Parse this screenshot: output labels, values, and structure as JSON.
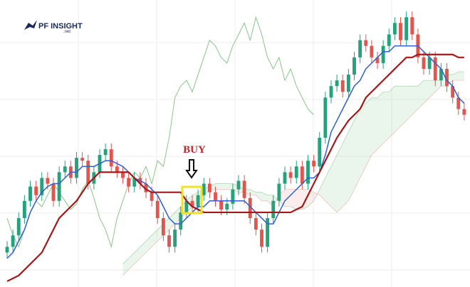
{
  "logo": {
    "name": "PF INSIGHT",
    "suffix": ".net"
  },
  "chart_data": {
    "type": "candlestick",
    "annotation": "BUY",
    "ylim": [
      0,
      100
    ],
    "up_color": "#26a17b",
    "down_color": "#e0564f",
    "open": [
      12,
      14,
      18,
      24,
      30,
      35,
      32,
      38,
      36,
      30,
      40,
      42,
      38,
      45,
      44,
      36,
      40,
      46,
      48,
      42,
      40,
      38,
      35,
      38,
      36,
      33,
      30,
      24,
      18,
      14,
      20,
      26,
      30,
      28,
      32,
      36,
      33,
      30,
      27,
      29,
      34,
      37,
      31,
      24,
      20,
      14,
      24,
      30,
      36,
      40,
      38,
      42,
      36,
      44,
      42,
      52,
      66,
      70,
      72,
      68,
      74,
      80,
      86,
      84,
      80,
      78,
      84,
      88,
      92,
      86,
      94,
      88,
      80,
      76,
      80,
      72,
      76,
      70,
      66,
      62
    ],
    "high": [
      16,
      20,
      26,
      32,
      37,
      37,
      40,
      40,
      38,
      42,
      44,
      44,
      47,
      47,
      46,
      42,
      48,
      50,
      50,
      44,
      42,
      40,
      40,
      40,
      38,
      35,
      32,
      26,
      20,
      22,
      28,
      32,
      32,
      34,
      38,
      38,
      35,
      32,
      31,
      36,
      39,
      39,
      33,
      26,
      22,
      26,
      32,
      38,
      42,
      42,
      44,
      44,
      46,
      46,
      54,
      68,
      72,
      74,
      74,
      76,
      82,
      88,
      88,
      86,
      82,
      86,
      90,
      94,
      94,
      96,
      96,
      90,
      82,
      82,
      82,
      78,
      78,
      72,
      68,
      64
    ],
    "low": [
      10,
      12,
      16,
      22,
      28,
      30,
      30,
      34,
      28,
      28,
      38,
      36,
      36,
      42,
      34,
      34,
      38,
      44,
      40,
      38,
      36,
      33,
      33,
      34,
      31,
      28,
      22,
      16,
      12,
      12,
      18,
      24,
      26,
      26,
      30,
      31,
      28,
      25,
      25,
      27,
      32,
      29,
      22,
      18,
      12,
      12,
      22,
      28,
      34,
      36,
      36,
      34,
      34,
      40,
      40,
      50,
      64,
      68,
      66,
      66,
      72,
      78,
      82,
      78,
      76,
      76,
      82,
      86,
      84,
      84,
      86,
      78,
      74,
      74,
      70,
      70,
      68,
      64,
      60,
      58
    ],
    "close": [
      14,
      18,
      24,
      30,
      35,
      32,
      38,
      36,
      30,
      40,
      42,
      38,
      45,
      44,
      36,
      40,
      46,
      48,
      42,
      40,
      38,
      35,
      38,
      36,
      33,
      30,
      24,
      18,
      14,
      20,
      26,
      30,
      28,
      32,
      36,
      33,
      30,
      27,
      29,
      34,
      37,
      31,
      24,
      20,
      14,
      24,
      30,
      36,
      40,
      38,
      42,
      36,
      44,
      42,
      52,
      66,
      70,
      72,
      68,
      74,
      80,
      86,
      84,
      80,
      78,
      84,
      88,
      92,
      86,
      94,
      88,
      80,
      76,
      80,
      72,
      76,
      70,
      66,
      62,
      60
    ],
    "lines": [
      {
        "color": "#2f5fd0",
        "values": [
          10,
          12,
          16,
          20,
          26,
          30,
          33,
          35,
          36,
          36,
          38,
          40,
          40,
          42,
          42,
          42,
          43,
          44,
          44,
          43,
          42,
          40,
          38,
          37,
          36,
          34,
          32,
          28,
          24,
          22,
          22,
          24,
          26,
          28,
          28,
          30,
          30,
          30,
          30,
          30,
          30,
          30,
          28,
          26,
          24,
          22,
          22,
          26,
          30,
          32,
          34,
          36,
          38,
          38,
          40,
          46,
          54,
          58,
          62,
          66,
          70,
          72,
          76,
          78,
          80,
          82,
          82,
          84,
          84,
          84,
          84,
          84,
          82,
          80,
          78,
          76,
          72,
          70,
          66,
          64
        ]
      },
      {
        "color": "#a31818",
        "values": [
          2,
          3,
          4,
          6,
          8,
          10,
          12,
          16,
          20,
          24,
          26,
          28,
          30,
          33,
          36,
          38,
          40,
          40,
          40,
          40,
          40,
          40,
          38,
          36,
          34,
          33,
          33,
          33,
          33,
          33,
          33,
          30,
          28,
          27,
          26,
          26,
          26,
          26,
          26,
          26,
          26,
          26,
          26,
          26,
          26,
          26,
          26,
          26,
          26,
          26,
          27,
          28,
          32,
          36,
          40,
          44,
          48,
          52,
          55,
          58,
          60,
          62,
          66,
          68,
          70,
          72,
          74,
          76,
          78,
          80,
          80,
          81,
          81,
          81,
          81,
          81,
          81,
          81,
          80,
          80
        ]
      },
      {
        "color": "#7cc07c",
        "values": [
          24,
          18,
          14,
          20,
          26,
          30,
          28,
          32,
          36,
          33,
          30,
          27,
          29,
          34,
          37,
          31,
          24,
          20,
          14,
          24,
          30,
          36,
          40,
          38,
          42,
          36,
          44,
          42,
          52,
          66,
          70,
          72,
          68,
          74,
          80,
          86,
          84,
          80,
          78,
          84,
          88,
          92,
          86,
          94,
          88,
          80,
          76,
          80,
          72,
          76,
          70,
          66,
          62,
          60,
          null,
          null,
          null,
          null,
          null,
          null,
          null,
          null,
          null,
          null,
          null,
          null,
          null,
          null,
          null,
          null,
          null,
          null,
          null,
          null,
          null,
          null
        ]
      }
    ],
    "cloud": {
      "up_color": "#2e9e3e",
      "down_color": "#e04040",
      "span_a": [
        null,
        null,
        null,
        null,
        null,
        null,
        null,
        null,
        null,
        null,
        null,
        null,
        null,
        null,
        null,
        null,
        null,
        null,
        null,
        null,
        8,
        10,
        12,
        14,
        16,
        18,
        20,
        22,
        24,
        26,
        28,
        30,
        32,
        33,
        34,
        35,
        36,
        36,
        36,
        36,
        35,
        34,
        34,
        33,
        33,
        32,
        32,
        30,
        28,
        28,
        27,
        27,
        28,
        30,
        34,
        38,
        42,
        46,
        50,
        54,
        58,
        62,
        64,
        66,
        66,
        68,
        68,
        70,
        70,
        70,
        70,
        70,
        72,
        72,
        72,
        72,
        74,
        74,
        75,
        75
      ],
      "span_b": [
        null,
        null,
        null,
        null,
        null,
        null,
        null,
        null,
        null,
        null,
        null,
        null,
        null,
        null,
        null,
        null,
        null,
        null,
        null,
        null,
        4,
        6,
        8,
        10,
        12,
        14,
        16,
        18,
        20,
        22,
        24,
        26,
        28,
        30,
        32,
        34,
        34,
        34,
        34,
        34,
        33,
        33,
        32,
        32,
        30,
        30,
        28,
        32,
        34,
        34,
        34,
        34,
        34,
        33,
        32,
        30,
        28,
        26,
        28,
        30,
        34,
        38,
        42,
        46,
        48,
        50,
        52,
        54,
        56,
        58,
        60,
        62,
        64,
        66,
        68,
        70,
        70,
        72,
        72,
        72
      ]
    }
  }
}
